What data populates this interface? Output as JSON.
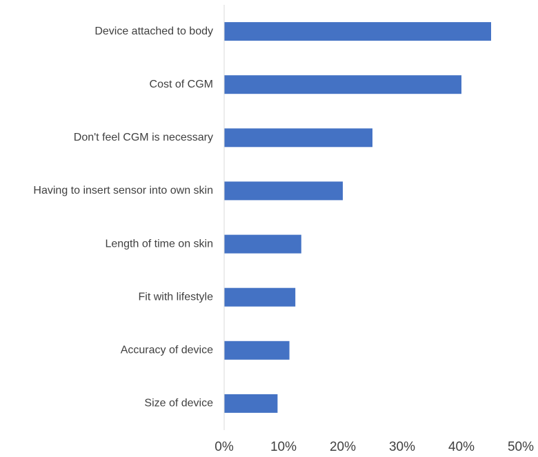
{
  "chart_data": {
    "type": "bar",
    "orientation": "horizontal",
    "categories": [
      "Device attached to body",
      "Cost of CGM",
      "Don't feel CGM is necessary",
      "Having to insert sensor into own skin",
      "Length of time on skin",
      "Fit with lifestyle",
      "Accuracy of device",
      "Size of device"
    ],
    "values": [
      45,
      40,
      25,
      20,
      13,
      12,
      11,
      9
    ],
    "xlim": [
      0,
      50
    ],
    "x_ticks": [
      0,
      10,
      20,
      30,
      40,
      50
    ],
    "x_tick_labels": [
      "0%",
      "10%",
      "20%",
      "30%",
      "40%",
      "50%"
    ],
    "title": "",
    "xlabel": "",
    "ylabel": "",
    "grid": false,
    "bar_color": "#4472C4",
    "axis_color": "#D9D9D9"
  }
}
